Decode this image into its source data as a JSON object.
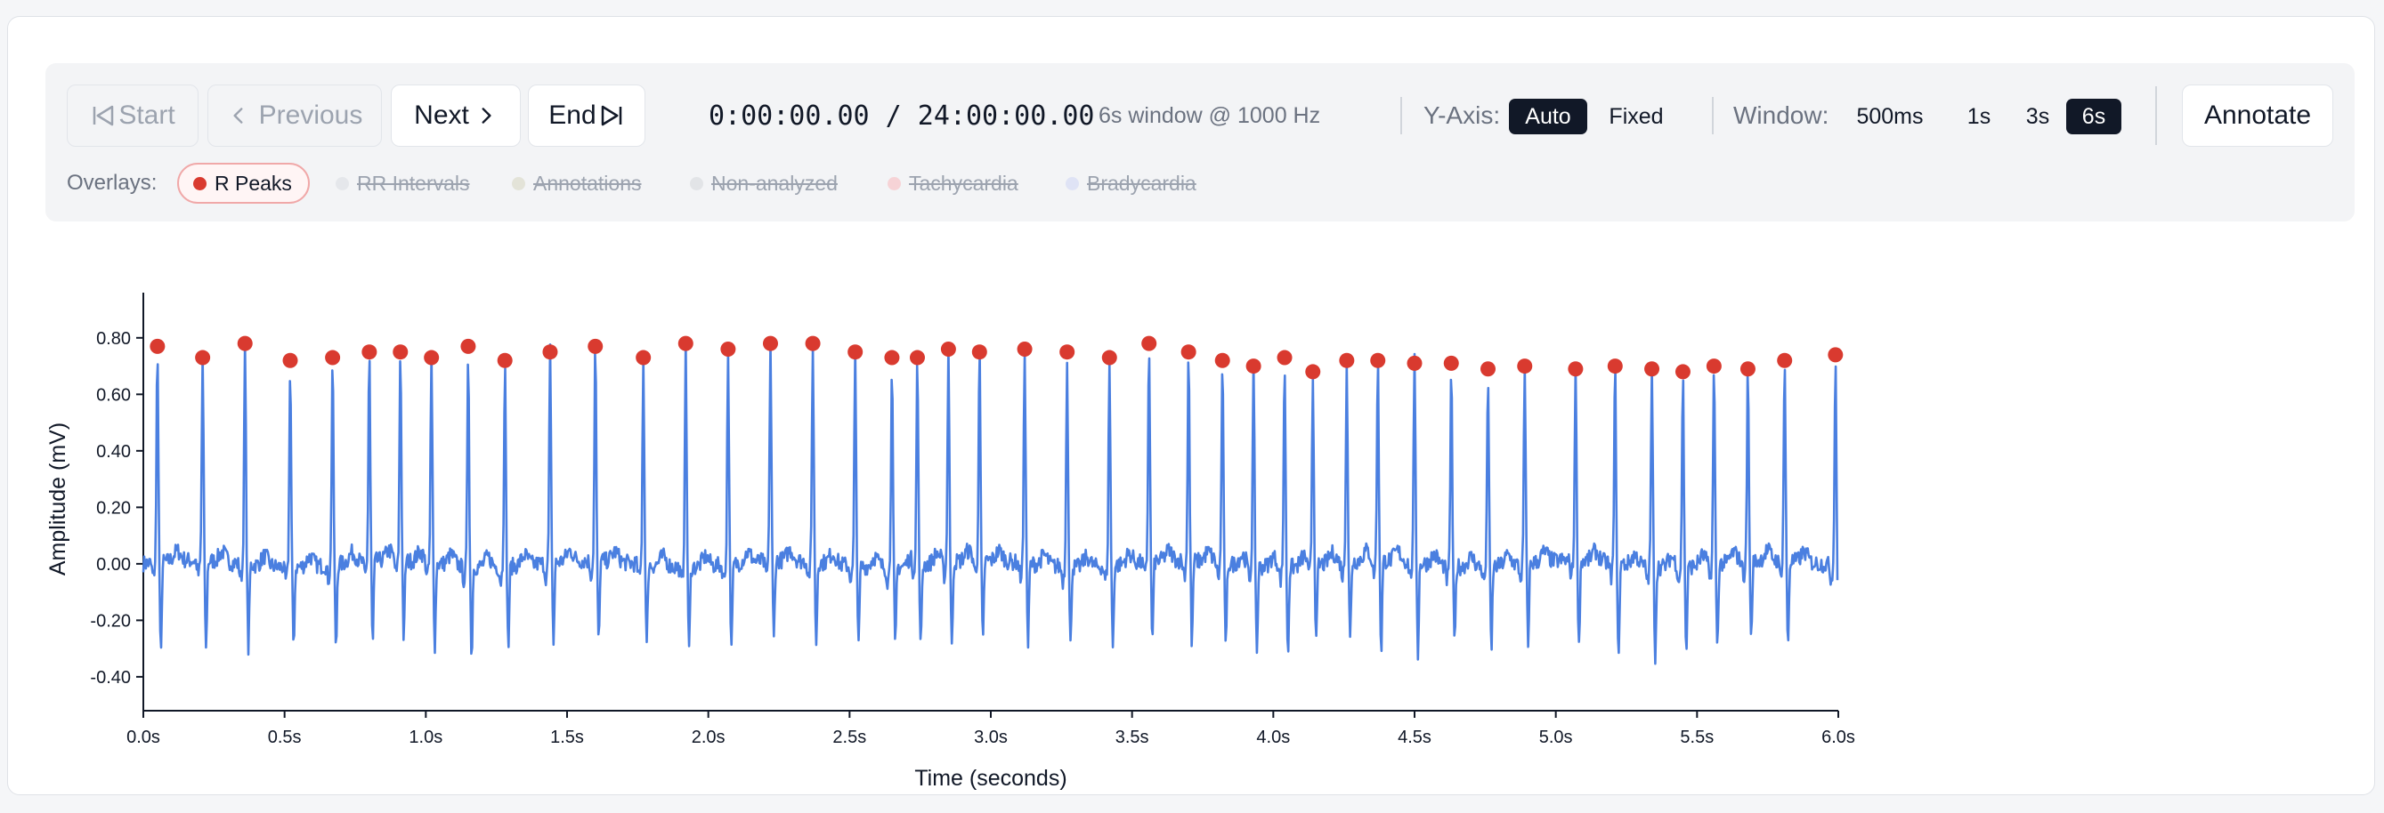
{
  "nav": {
    "start_label": "Start",
    "previous_label": "Previous",
    "next_label": "Next",
    "end_label": "End"
  },
  "time_display": "0:00:00.00 / 24:00:00.00",
  "window_info": "6s window @ 1000 Hz",
  "y_axis": {
    "label": "Y-Axis:",
    "options": [
      "Auto",
      "Fixed"
    ],
    "selected": "Auto"
  },
  "window": {
    "label": "Window:",
    "options": [
      "500ms",
      "1s",
      "3s",
      "6s"
    ],
    "selected": "6s"
  },
  "annotate_label": "Annotate",
  "overlays": {
    "label": "Overlays:",
    "items": [
      {
        "label": "R Peaks",
        "active": true,
        "color": "#d93a2f"
      },
      {
        "label": "RR Intervals",
        "active": false,
        "color": "#e5e7eb"
      },
      {
        "label": "Annotations",
        "active": false,
        "color": "#e3e3d8"
      },
      {
        "label": "Non-analyzed",
        "active": false,
        "color": "#e2e4e7"
      },
      {
        "label": "Tachycardia",
        "active": false,
        "color": "#f6d3d6"
      },
      {
        "label": "Bradycardia",
        "active": false,
        "color": "#dfe3f5"
      }
    ]
  },
  "chart_data": {
    "type": "line",
    "xlabel": "Time (seconds)",
    "ylabel": "Amplitude (mV)",
    "xlim": [
      0,
      6
    ],
    "ylim": [
      -0.52,
      0.96
    ],
    "x_ticks": [
      "0.0s",
      "0.5s",
      "1.0s",
      "1.5s",
      "2.0s",
      "2.5s",
      "3.0s",
      "3.5s",
      "4.0s",
      "4.5s",
      "5.0s",
      "5.5s",
      "6.0s"
    ],
    "y_ticks": [
      "0.80",
      "0.60",
      "0.40",
      "0.20",
      "0.00",
      "-0.20",
      "-0.40"
    ],
    "series": [
      {
        "values": []
      },
      {
        "name": "R Peaks",
        "marker": "circle",
        "color": "#d93a2f",
        "x": [
          0.05,
          0.21,
          0.36,
          0.52,
          0.67,
          0.8,
          0.91,
          1.02,
          1.15,
          1.28,
          1.44,
          1.6,
          1.77,
          1.92,
          2.07,
          2.22,
          2.37,
          2.52,
          2.65,
          2.74,
          2.85,
          2.96,
          3.12,
          3.27,
          3.42,
          3.56,
          3.7,
          3.82,
          3.93,
          4.04,
          4.14,
          4.26,
          4.37,
          4.5,
          4.63,
          4.76,
          4.89,
          5.07,
          5.21,
          5.34,
          5.45,
          5.56,
          5.68,
          5.81,
          5.99
        ],
        "y": [
          0.77,
          0.73,
          0.78,
          0.72,
          0.73,
          0.75,
          0.75,
          0.73,
          0.77,
          0.72,
          0.75,
          0.77,
          0.73,
          0.78,
          0.76,
          0.78,
          0.78,
          0.75,
          0.73,
          0.73,
          0.76,
          0.75,
          0.76,
          0.75,
          0.73,
          0.78,
          0.75,
          0.72,
          0.7,
          0.73,
          0.68,
          0.72,
          0.72,
          0.71,
          0.71,
          0.69,
          0.7,
          0.69,
          0.7,
          0.69,
          0.68,
          0.7,
          0.69,
          0.72,
          0.74
        ]
      }
    ],
    "trough_depths": [
      -0.34,
      -0.32,
      -0.3,
      -0.3,
      -0.31,
      -0.3,
      -0.28,
      -0.29,
      -0.33,
      -0.29,
      -0.29,
      -0.3,
      -0.29,
      -0.3,
      -0.31,
      -0.28,
      -0.29,
      -0.29,
      -0.29,
      -0.3,
      -0.31,
      -0.3,
      -0.29,
      -0.28,
      -0.29,
      -0.29,
      -0.3,
      -0.31,
      -0.31,
      -0.31,
      -0.28,
      -0.28,
      -0.32,
      -0.32,
      -0.29,
      -0.31,
      -0.29,
      -0.31,
      -0.36,
      -0.32,
      -0.31,
      -0.3,
      -0.29,
      -0.3,
      -0.34
    ],
    "trace_color": "#4a7fe0"
  }
}
